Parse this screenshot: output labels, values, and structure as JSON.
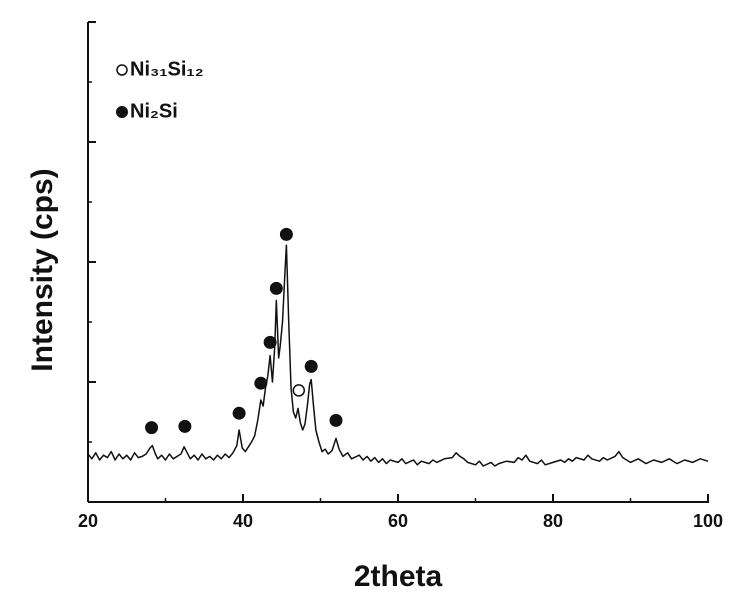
{
  "chart_data": {
    "type": "line",
    "x_label": "2theta",
    "y_label": "Intensity (cps)",
    "xlim": [
      20,
      100
    ],
    "xticks": [
      20,
      40,
      60,
      80,
      100
    ],
    "xminor_ticks": [
      30,
      50,
      70,
      90
    ],
    "ylim": [
      0,
      4
    ],
    "yticks": [
      0,
      1,
      2,
      3,
      4
    ],
    "yminor_ticks": [
      0.5,
      1.5,
      2.5,
      3.5
    ],
    "series": [
      {
        "color": "#111111",
        "x": [
          20,
          20.5,
          21,
          21.5,
          22,
          22.5,
          23,
          23.5,
          24,
          24.5,
          25,
          25.5,
          26,
          26.5,
          27,
          27.5,
          28,
          28.3,
          28.7,
          29,
          29.5,
          30,
          30.5,
          31,
          31.5,
          32,
          32.4,
          32.8,
          33.2,
          33.7,
          34.2,
          34.7,
          35.2,
          35.7,
          36.2,
          36.7,
          37.2,
          37.7,
          38.2,
          38.7,
          39.2,
          39.5,
          39.9,
          40.3,
          40.7,
          41.1,
          41.5,
          41.9,
          42.3,
          42.6,
          42.9,
          43.2,
          43.5,
          43.8,
          44.1,
          44.3,
          44.6,
          44.8,
          45.1,
          45.4,
          45.6,
          45.9,
          46.2,
          46.5,
          46.8,
          47.1,
          47.4,
          47.7,
          48,
          48.3,
          48.6,
          48.8,
          49.1,
          49.4,
          49.8,
          50.2,
          50.6,
          51,
          51.5,
          52,
          52.4,
          52.9,
          53.5,
          54,
          55,
          55.5,
          56,
          56.5,
          57,
          57.5,
          58,
          58.5,
          59,
          60,
          60.5,
          61,
          62,
          62.5,
          63,
          64,
          64.5,
          65,
          66,
          67,
          67.5,
          68,
          68.5,
          69,
          70,
          70.5,
          71,
          72,
          72.5,
          73,
          74,
          75,
          75.5,
          76,
          76.5,
          77,
          78,
          78.5,
          79,
          80,
          81,
          81.5,
          82,
          82.5,
          83,
          84,
          84.5,
          85,
          86,
          86.5,
          87,
          88,
          88.5,
          89,
          89.5,
          90,
          91,
          92,
          93,
          94,
          95,
          96,
          97,
          98,
          99,
          100
        ],
        "values": [
          0.4,
          0.36,
          0.41,
          0.35,
          0.39,
          0.37,
          0.42,
          0.35,
          0.4,
          0.36,
          0.39,
          0.35,
          0.41,
          0.37,
          0.38,
          0.4,
          0.45,
          0.47,
          0.4,
          0.36,
          0.39,
          0.35,
          0.4,
          0.36,
          0.38,
          0.4,
          0.46,
          0.41,
          0.36,
          0.39,
          0.35,
          0.4,
          0.36,
          0.38,
          0.35,
          0.39,
          0.36,
          0.4,
          0.37,
          0.41,
          0.47,
          0.6,
          0.45,
          0.42,
          0.46,
          0.5,
          0.55,
          0.68,
          0.85,
          0.8,
          0.95,
          1.05,
          1.22,
          1.0,
          1.3,
          1.68,
          1.2,
          1.3,
          1.5,
          1.9,
          2.14,
          1.5,
          0.95,
          0.75,
          0.7,
          0.78,
          0.66,
          0.6,
          0.65,
          0.8,
          0.98,
          1.02,
          0.8,
          0.6,
          0.5,
          0.42,
          0.44,
          0.4,
          0.43,
          0.53,
          0.44,
          0.38,
          0.41,
          0.36,
          0.39,
          0.35,
          0.38,
          0.34,
          0.37,
          0.33,
          0.36,
          0.32,
          0.35,
          0.33,
          0.36,
          0.32,
          0.35,
          0.31,
          0.34,
          0.32,
          0.35,
          0.33,
          0.36,
          0.37,
          0.41,
          0.38,
          0.36,
          0.33,
          0.31,
          0.34,
          0.3,
          0.33,
          0.3,
          0.32,
          0.34,
          0.33,
          0.37,
          0.35,
          0.39,
          0.34,
          0.32,
          0.35,
          0.31,
          0.33,
          0.35,
          0.33,
          0.36,
          0.34,
          0.37,
          0.35,
          0.39,
          0.36,
          0.34,
          0.37,
          0.35,
          0.38,
          0.42,
          0.37,
          0.35,
          0.33,
          0.36,
          0.32,
          0.35,
          0.33,
          0.36,
          0.32,
          0.35,
          0.33,
          0.36,
          0.34
        ]
      }
    ],
    "markers": [
      {
        "name": "Ni₃₁Si₁₂",
        "marker": "open",
        "x": [
          47.2
        ],
        "y": [
          0.93
        ]
      },
      {
        "name": "Ni₂Si",
        "marker": "filled",
        "x": [
          28.2,
          32.5,
          39.5,
          42.3,
          43.5,
          44.3,
          45.6,
          48.8,
          52.0
        ],
        "y": [
          0.62,
          0.63,
          0.74,
          0.99,
          1.33,
          1.78,
          2.23,
          1.13,
          0.68
        ]
      }
    ]
  }
}
